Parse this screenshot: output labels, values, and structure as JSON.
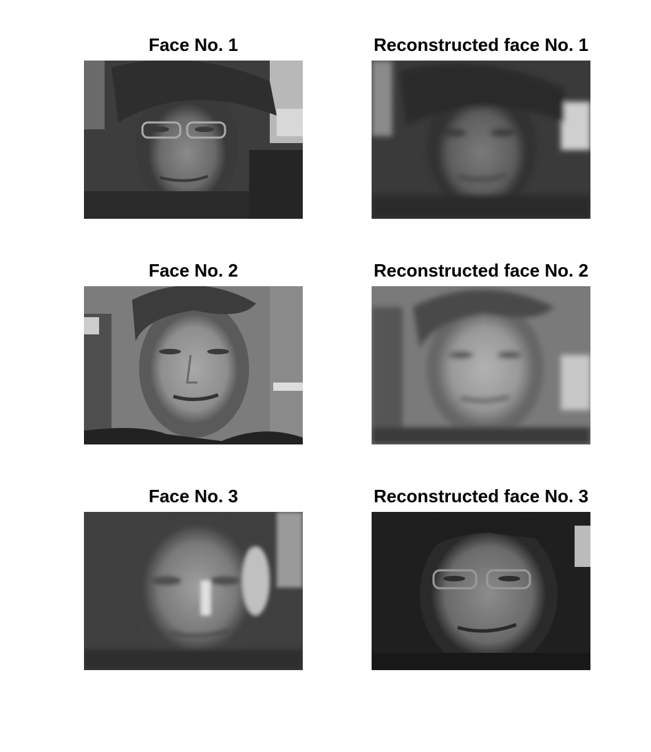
{
  "figure": {
    "panels": [
      {
        "title": "Face No. 1",
        "image_desc": "grayscale low-resolution face, woman with dark hair and glasses",
        "tone": "dark"
      },
      {
        "title": "Reconstructed face No. 1",
        "image_desc": "blurred reconstruction of face 1",
        "tone": "dark-blur"
      },
      {
        "title": "Face No. 2",
        "image_desc": "grayscale face, woman with hair pulled back",
        "tone": "mid"
      },
      {
        "title": "Reconstructed face No. 2",
        "image_desc": "blurred reconstruction of face 2",
        "tone": "light-blur"
      },
      {
        "title": "Face No. 3",
        "image_desc": "grayscale blurred face",
        "tone": "soft"
      },
      {
        "title": "Reconstructed face No. 3",
        "image_desc": "reconstruction of face 3, woman with glasses",
        "tone": "dark-glasses"
      }
    ],
    "colors": {
      "background": "#ffffff",
      "title_text": "#000000"
    }
  }
}
